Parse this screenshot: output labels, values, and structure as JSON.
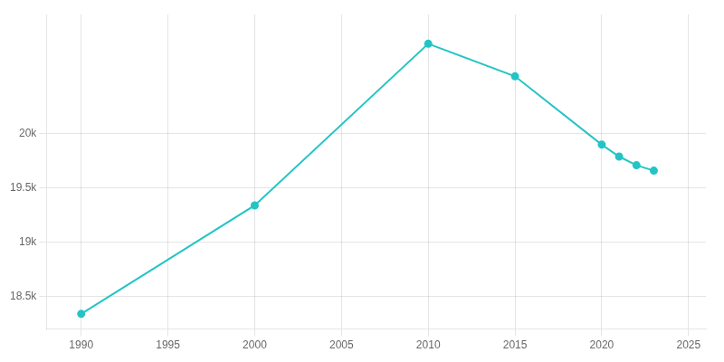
{
  "chart_data": {
    "type": "line",
    "x": [
      1990,
      2000,
      2010,
      2015,
      2020,
      2021,
      2022,
      2023
    ],
    "values": [
      18340,
      19340,
      20830,
      20530,
      19900,
      19790,
      19710,
      19660
    ],
    "color": "#25C4C4",
    "marker": "circle",
    "xlim": [
      1988,
      2026
    ],
    "xticks": [
      1990,
      1995,
      2000,
      2005,
      2010,
      2015,
      2020,
      2025
    ],
    "ylim": [
      18200,
      21100
    ],
    "yticks": [
      {
        "value": 18500,
        "label": "18.5k"
      },
      {
        "value": 19000,
        "label": "19k"
      },
      {
        "value": 19500,
        "label": "19.5k"
      },
      {
        "value": 20000,
        "label": "20k"
      }
    ],
    "grid": true
  }
}
